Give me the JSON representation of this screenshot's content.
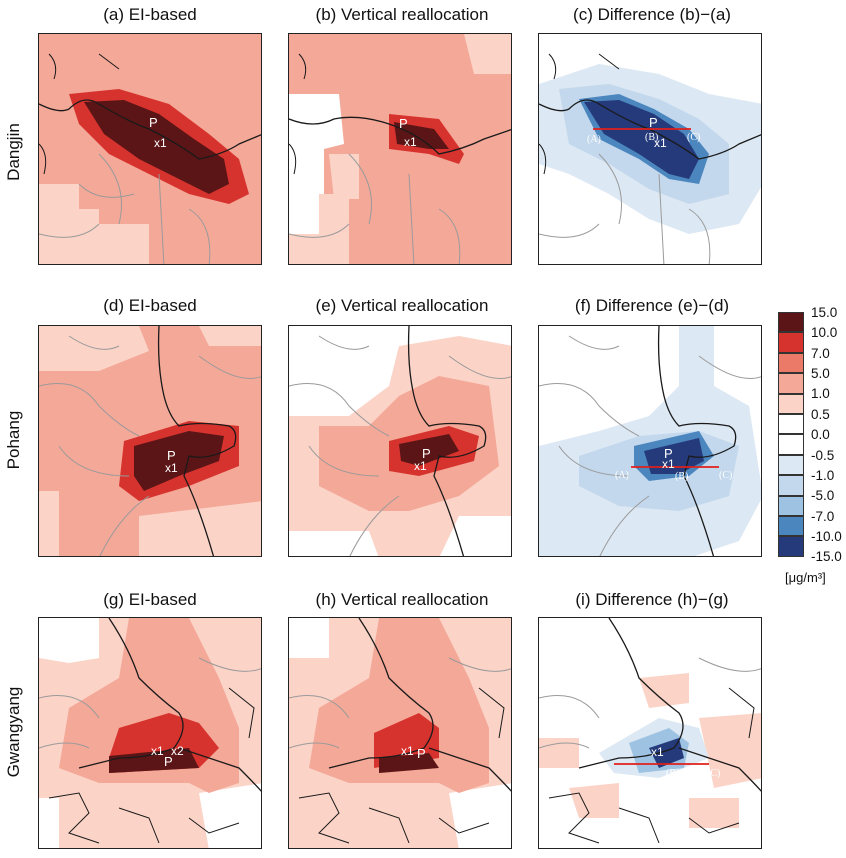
{
  "row_labels": [
    "Dangjin",
    "Pohang",
    "Gwangyang"
  ],
  "panel_titles": [
    [
      "(a) EI-based",
      "(b) Vertical reallocation",
      "(c) Difference (b)−(a)"
    ],
    [
      "(d) EI-based",
      "(e) Vertical reallocation",
      "(f) Difference (e)−(d)"
    ],
    [
      "(g) EI-based",
      "(h) Vertical reallocation",
      "(i) Difference (h)−(g)"
    ]
  ],
  "markers": {
    "p": "P",
    "x1": "x1",
    "x2": "x2",
    "a": "(A)",
    "b": "(B)",
    "c": "(C)"
  },
  "colorbar": {
    "labels": [
      "15.0",
      "10.0",
      "7.0",
      "5.0",
      "1.0",
      "0.5",
      "0.0",
      "-0.5",
      "-1.0",
      "-5.0",
      "-7.0",
      "-10.0",
      "-15.0"
    ],
    "colors": [
      "#5c1516",
      "#d7332e",
      "#ec7a68",
      "#f4a898",
      "#fbd3c7",
      "#ffffff",
      "#ffffff",
      "#dce8f3",
      "#c3d8ec",
      "#9dc2e2",
      "#4c86bf",
      "#243a7a"
    ],
    "unit": "[μg/m³]"
  },
  "colors": {
    "line_dark": "#1a1a1a",
    "line_gray": "#9a9a9a",
    "section_line": "#e0201a"
  }
}
